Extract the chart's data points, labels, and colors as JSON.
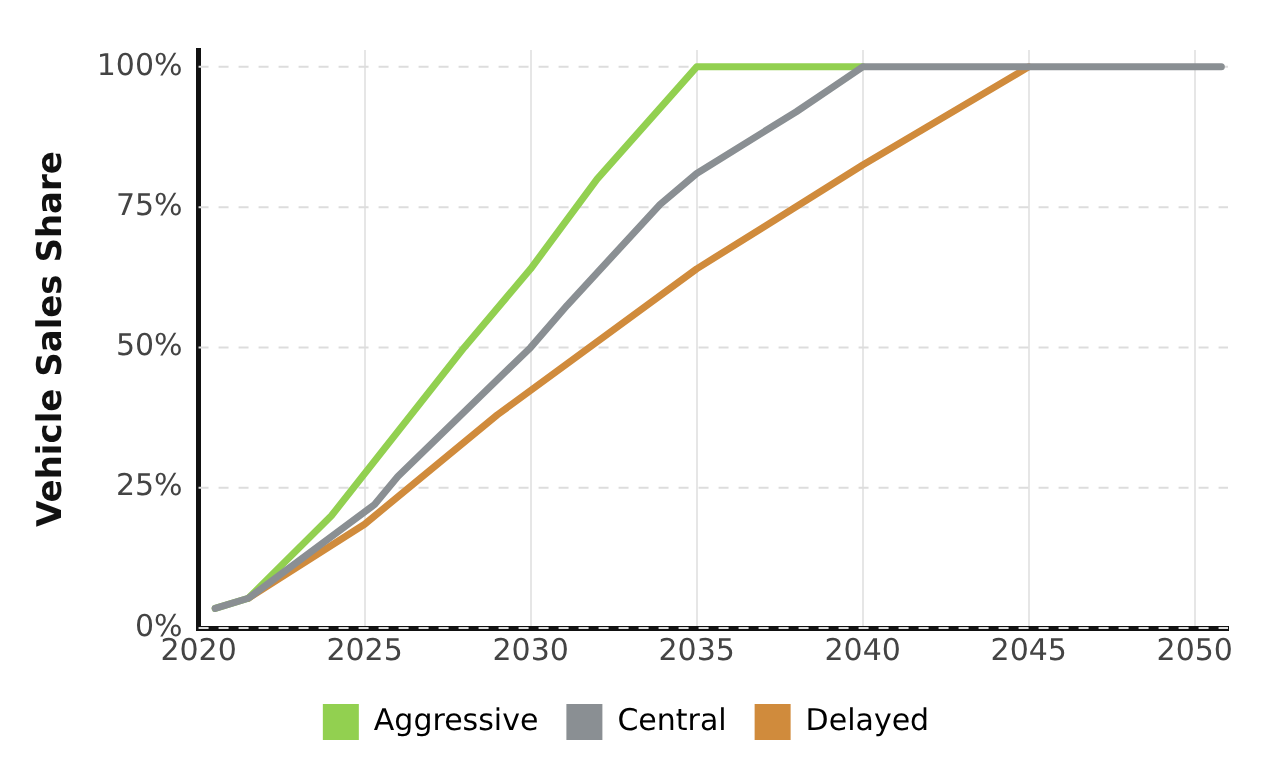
{
  "chart_data": {
    "type": "line",
    "ylabel": "Vehicle Sales Share",
    "xlim": [
      2020,
      2051
    ],
    "xticks": [
      2020,
      2025,
      2030,
      2035,
      2040,
      2045,
      2050
    ],
    "ylim": [
      0,
      103
    ],
    "yticks": [
      {
        "value": 0,
        "label": "0%"
      },
      {
        "value": 25,
        "label": "25%"
      },
      {
        "value": 50,
        "label": "50%"
      },
      {
        "value": 75,
        "label": "75%"
      },
      {
        "value": 100,
        "label": "100%"
      }
    ],
    "grid": true,
    "legend": "bottom",
    "marker": "none",
    "line_style": "solid",
    "series": [
      {
        "name": "Aggressive",
        "color": "#92d050",
        "x": [
          2020.5,
          2021.5,
          2024,
          2028,
          2030,
          2032,
          2035,
          2040
        ],
        "values": [
          3.5,
          5.3,
          20,
          50,
          64,
          80,
          100,
          100
        ]
      },
      {
        "name": "Central",
        "color": "#8a8f93",
        "x": [
          2020.5,
          2021.5,
          2025.3,
          2026,
          2030,
          2031.1,
          2033.9,
          2035,
          2038,
          2039,
          2040,
          2050.8
        ],
        "values": [
          3.5,
          5.3,
          22,
          27,
          50,
          57.5,
          75.5,
          81,
          92,
          96,
          100,
          100
        ]
      },
      {
        "name": "Delayed",
        "color": "#d08b3c",
        "x": [
          2021.5,
          2025,
          2029,
          2035,
          2040,
          2045
        ],
        "values": [
          5.3,
          18.5,
          38,
          64,
          82.5,
          100
        ]
      }
    ]
  }
}
